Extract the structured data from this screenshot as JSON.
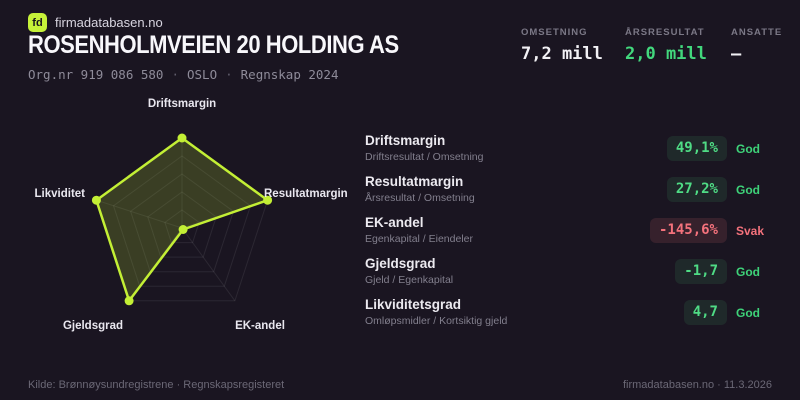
{
  "brand": {
    "logo": "fd",
    "site": "firmadatabasen.no"
  },
  "header": {
    "title": "ROSENHOLMVEIEN 20 HOLDING AS",
    "org_parts": [
      "Org.nr 919 086 580",
      "OSLO",
      "Regnskap 2024"
    ],
    "separator": "·"
  },
  "stats": [
    {
      "label": "OMSETNING",
      "value": "7,2 mill",
      "tone": "white"
    },
    {
      "label": "ÅRSRESULTAT",
      "value": "2,0 mill",
      "tone": "green"
    },
    {
      "label": "ANSATTE",
      "value": "–",
      "tone": "white"
    }
  ],
  "chart_data": {
    "type": "radar",
    "axes": [
      "Driftsmargin",
      "Resultatmargin",
      "EK-andel",
      "Gjeldsgrad",
      "Likviditet"
    ],
    "values_pct_of_max": [
      100,
      100,
      2,
      100,
      100
    ],
    "max": 100,
    "rings": 5,
    "line_color": "#c3ef35",
    "fill_color": "rgba(195,239,53,0.19)",
    "grid_color": "rgba(255,255,255,0.08)"
  },
  "metrics": [
    {
      "name": "Driftsmargin",
      "formula": "Driftsresultat / Omsetning",
      "value": "49,1%",
      "status": "God",
      "tone": "good"
    },
    {
      "name": "Resultatmargin",
      "formula": "Årsresultat / Omsetning",
      "value": "27,2%",
      "status": "God",
      "tone": "good"
    },
    {
      "name": "EK-andel",
      "formula": "Egenkapital / Eiendeler",
      "value": "-145,6%",
      "status": "Svak",
      "tone": "bad"
    },
    {
      "name": "Gjeldsgrad",
      "formula": "Gjeld / Egenkapital",
      "value": "-1,7",
      "status": "God",
      "tone": "good"
    },
    {
      "name": "Likviditetsgrad",
      "formula": "Omløpsmidler / Kortsiktig gjeld",
      "value": "4,7",
      "status": "God",
      "tone": "good"
    }
  ],
  "footer": {
    "source": "Kilde: Brønnøysundregistrene · Regnskapsregisteret",
    "site_date": "firmadatabasen.no · 11.3.2026"
  },
  "colors": {
    "background": "#1a1521",
    "accent": "#c3ef35",
    "green": "#42d87d",
    "red": "#f4727c"
  }
}
